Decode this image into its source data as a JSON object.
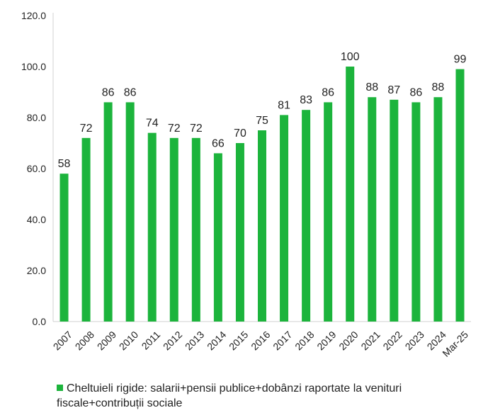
{
  "chart_data": {
    "type": "bar",
    "categories": [
      "2007",
      "2008",
      "2009",
      "2010",
      "2011",
      "2012",
      "2013",
      "2014",
      "2015",
      "2016",
      "2017",
      "2018",
      "2019",
      "2020",
      "2021",
      "2022",
      "2023",
      "2024",
      "Mar-25"
    ],
    "series": [
      {
        "name": "Cheltuieli rigide: salarii+pensii publice+dobânzi raportate la venituri fiscale+contribuții sociale",
        "values": [
          58,
          72,
          86,
          86,
          74,
          72,
          72,
          66,
          70,
          75,
          81,
          83,
          86,
          100,
          88,
          87,
          86,
          88,
          99
        ],
        "color": "#1cb43c"
      }
    ],
    "data_labels": [
      "58",
      "72",
      "86",
      "86",
      "74",
      "72",
      "72",
      "66",
      "70",
      "75",
      "81",
      "83",
      "86",
      "100",
      "88",
      "87",
      "86",
      "88",
      "99"
    ],
    "y_ticks": [
      "0.0",
      "20.0",
      "40.0",
      "60.0",
      "80.0",
      "100.0",
      "120.0"
    ],
    "ylim": [
      0,
      120
    ],
    "grid": false,
    "legend_position": "bottom-left",
    "title": "",
    "xlabel": "",
    "ylabel": ""
  }
}
